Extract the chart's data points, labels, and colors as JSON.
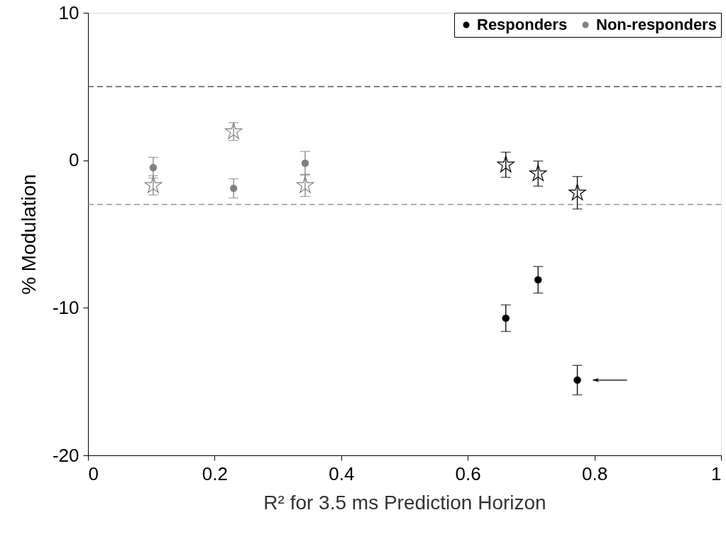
{
  "chart_data": {
    "type": "scatter",
    "xlabel": "R² for 3.5 ms Prediction Horizon",
    "ylabel": "% Modulation",
    "xlim": [
      0,
      1
    ],
    "xticks": [
      0,
      0.2,
      0.4,
      0.6,
      0.8,
      1
    ],
    "ylim": [
      -20,
      10
    ],
    "yticks": [
      -20,
      -10,
      0,
      10
    ],
    "grid": false,
    "legend": "top right",
    "series": [
      {
        "name": "Responders",
        "color": "#000000",
        "marker": "circle",
        "x": [
          0.66,
          0.711,
          0.773
        ],
        "values": [
          -10.7,
          -8.1,
          -14.9
        ],
        "errors": [
          0.9,
          0.9,
          1.0
        ]
      },
      {
        "name": "Non-responders",
        "color": "#808080",
        "marker": "circle",
        "x": [
          0.103,
          0.23,
          0.343
        ],
        "values": [
          -0.5,
          -1.9,
          -0.2
        ],
        "errors": [
          0.7,
          0.65,
          0.8
        ]
      },
      {
        "color": "#000000",
        "marker": "star",
        "x": [
          0.66,
          0.711,
          0.773
        ],
        "values": [
          -0.3,
          -0.9,
          -2.2
        ],
        "errors": [
          0.85,
          0.85,
          1.1
        ]
      },
      {
        "color": "#808080",
        "marker": "star",
        "x": [
          0.103,
          0.23,
          0.343
        ],
        "values": [
          -1.7,
          1.95,
          -1.7
        ],
        "errors": [
          0.65,
          0.6,
          0.75
        ]
      }
    ],
    "ref_lines": [
      {
        "axis": "y",
        "value": 5,
        "color": "#333333",
        "line_style": "dashed"
      },
      {
        "axis": "y",
        "value": -3,
        "color": "#808080",
        "line_style": "dashed"
      }
    ]
  }
}
